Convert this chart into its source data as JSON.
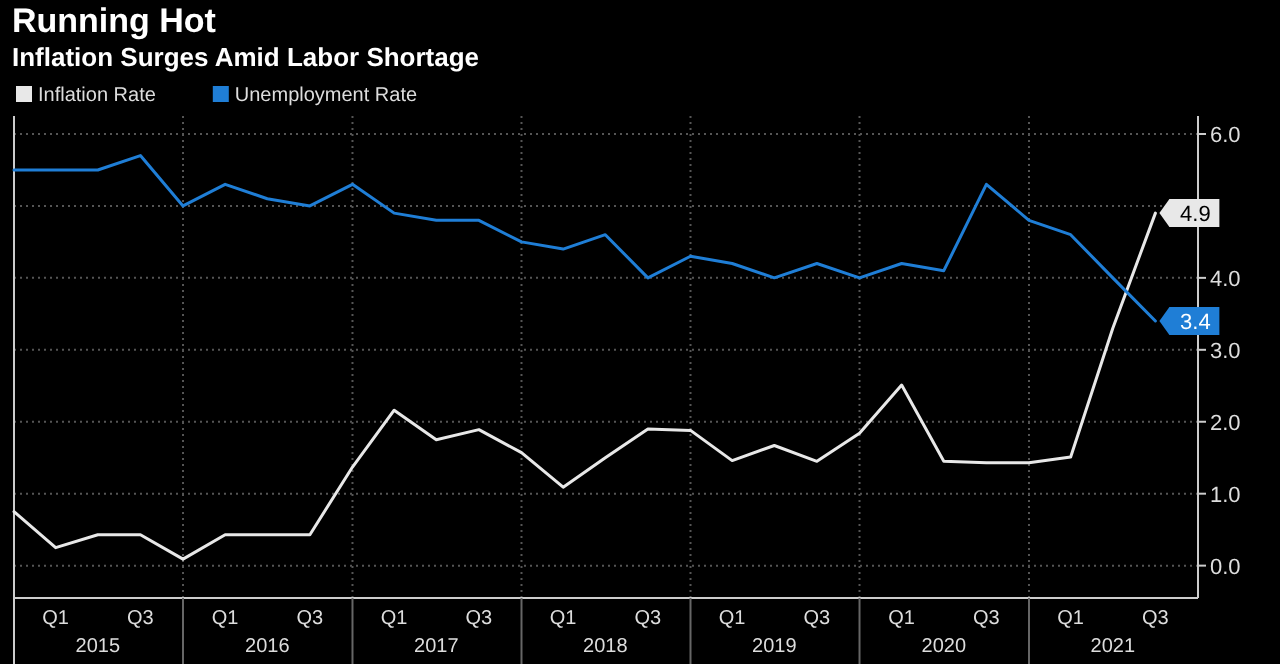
{
  "chart_data": {
    "type": "line",
    "title": "Running Hot",
    "subtitle": "Inflation Surges Amid Labor Shortage",
    "x": [
      "2014-12-31",
      "2015-03-31",
      "2015-06-30",
      "2015-09-30",
      "2015-12-31",
      "2016-03-31",
      "2016-06-30",
      "2016-09-30",
      "2016-12-31",
      "2017-03-31",
      "2017-06-30",
      "2017-09-30",
      "2017-12-31",
      "2018-03-31",
      "2018-06-30",
      "2018-09-30",
      "2018-12-31",
      "2019-03-31",
      "2019-06-30",
      "2019-09-30",
      "2019-12-31",
      "2020-03-31",
      "2020-06-30",
      "2020-09-30",
      "2020-12-31",
      "2021-03-31",
      "2021-06-30",
      "2021-09-30"
    ],
    "series": [
      {
        "name": "Inflation Rate",
        "color": "#e8e8e8",
        "values": [
          0.75,
          0.25,
          0.43,
          0.43,
          0.09,
          0.43,
          0.43,
          0.43,
          1.37,
          2.16,
          1.75,
          1.89,
          1.57,
          1.09,
          1.5,
          1.9,
          1.88,
          1.46,
          1.67,
          1.45,
          1.84,
          2.51,
          1.45,
          1.43,
          1.43,
          1.51,
          3.3,
          4.9
        ],
        "value_labels": [
          null,
          null,
          null,
          null,
          null,
          null,
          null,
          null,
          null,
          null,
          null,
          null,
          null,
          null,
          null,
          null,
          null,
          null,
          null,
          null,
          null,
          null,
          null,
          null,
          null,
          null,
          null,
          "4.9"
        ]
      },
      {
        "name": "Unemployment Rate",
        "color": "#1f7ed6",
        "values": [
          5.5,
          5.5,
          5.5,
          5.7,
          5.0,
          5.3,
          5.1,
          5.0,
          5.3,
          4.9,
          4.8,
          4.8,
          4.5,
          4.4,
          4.6,
          4.0,
          4.3,
          4.2,
          4.0,
          4.2,
          4.0,
          4.2,
          4.1,
          5.3,
          4.8,
          4.6,
          4.0,
          3.4
        ],
        "value_labels": [
          null,
          null,
          null,
          null,
          null,
          null,
          null,
          null,
          null,
          null,
          null,
          null,
          null,
          null,
          null,
          null,
          null,
          null,
          null,
          null,
          null,
          null,
          null,
          null,
          null,
          null,
          null,
          "3.4"
        ]
      }
    ],
    "xlim": [
      "2014-12-31",
      "2021-12-31"
    ],
    "xticks": [
      {
        "value": "2015-03-31",
        "label": "Q1"
      },
      {
        "value": "2015-09-30",
        "label": "Q3"
      },
      {
        "value": "2015-12-31",
        "label": null
      },
      {
        "value": "2016-03-31",
        "label": "Q1"
      },
      {
        "value": "2016-09-30",
        "label": "Q3"
      },
      {
        "value": "2016-12-31",
        "label": null
      },
      {
        "value": "2017-03-31",
        "label": "Q1"
      },
      {
        "value": "2017-09-30",
        "label": "Q3"
      },
      {
        "value": "2017-12-31",
        "label": null
      },
      {
        "value": "2018-03-31",
        "label": "Q1"
      },
      {
        "value": "2018-09-30",
        "label": "Q3"
      },
      {
        "value": "2018-12-31",
        "label": null
      },
      {
        "value": "2019-03-31",
        "label": "Q1"
      },
      {
        "value": "2019-09-30",
        "label": "Q3"
      },
      {
        "value": "2019-12-31",
        "label": null
      },
      {
        "value": "2020-03-31",
        "label": "Q1"
      },
      {
        "value": "2020-09-30",
        "label": "Q3"
      },
      {
        "value": "2020-12-31",
        "label": null
      },
      {
        "value": "2021-03-31",
        "label": "Q1"
      },
      {
        "value": "2021-09-30",
        "label": "Q3"
      }
    ],
    "x2lim": [
      "2014-12-31",
      "2021-12-31"
    ],
    "x2ticks": [
      {
        "value": "2015-06-30",
        "label": "2015"
      },
      {
        "value": "2016-06-30",
        "label": "2016"
      },
      {
        "value": "2017-06-30",
        "label": "2017"
      },
      {
        "value": "2018-06-30",
        "label": "2018"
      },
      {
        "value": "2019-06-30",
        "label": "2019"
      },
      {
        "value": "2020-06-30",
        "label": "2020"
      },
      {
        "value": "2021-06-30",
        "label": "2021"
      }
    ],
    "ylim": [
      -0.45,
      6.25
    ],
    "yticks": [
      {
        "value": 0,
        "label": "0.0"
      },
      {
        "value": 1,
        "label": "1.0"
      },
      {
        "value": 2,
        "label": "2.0"
      },
      {
        "value": 3,
        "label": "3.0"
      },
      {
        "value": 4,
        "label": "4.0"
      },
      {
        "value": 5,
        "label": null
      },
      {
        "value": 6,
        "label": "6.0"
      }
    ],
    "grid": true,
    "legend": "top left",
    "marker": "none",
    "line_style": "solid"
  }
}
